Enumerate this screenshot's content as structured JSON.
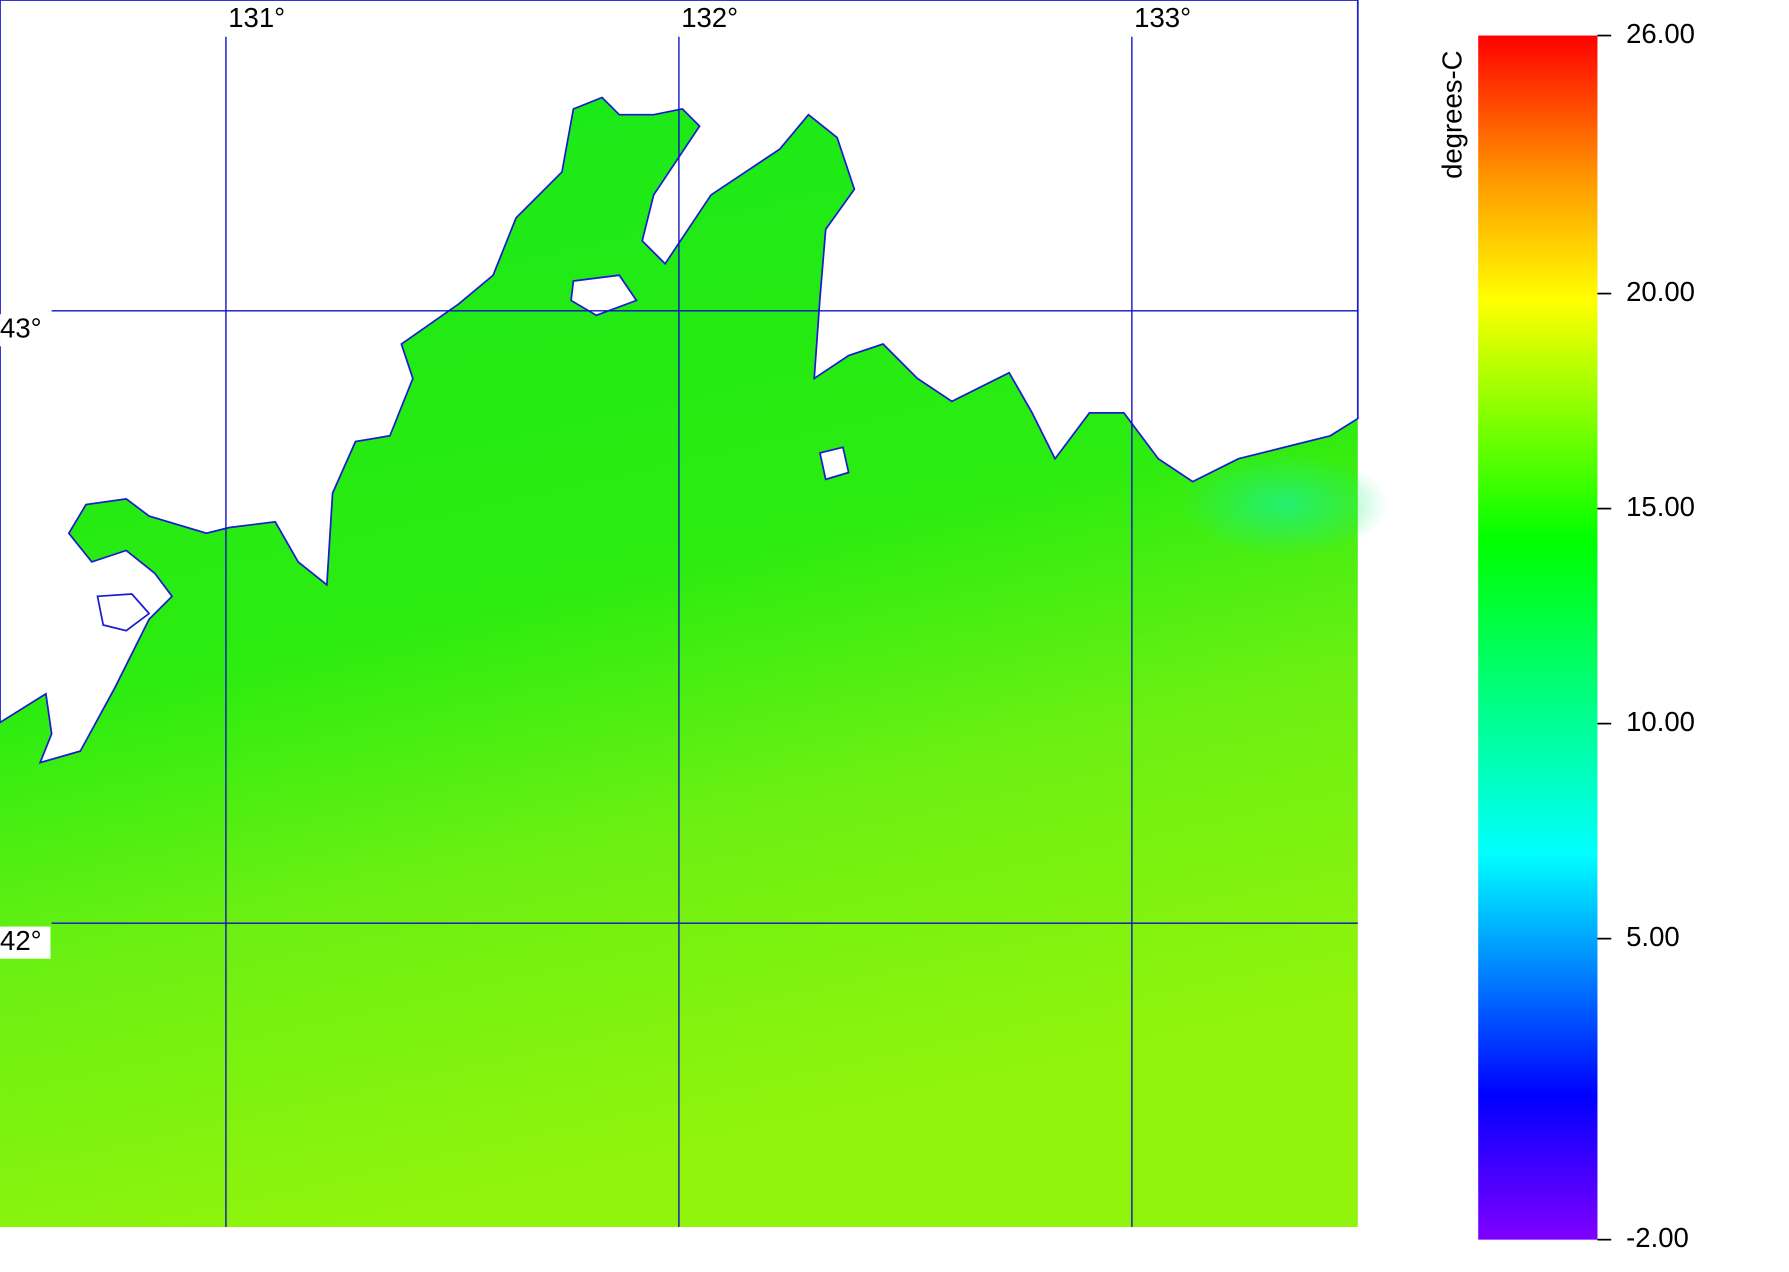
{
  "map": {
    "lon_lines": [
      {
        "value": 131,
        "label": "131°"
      },
      {
        "value": 132,
        "label": "132°"
      },
      {
        "value": 133,
        "label": "133°"
      }
    ],
    "lat_lines": [
      {
        "value": 43,
        "label": "43°"
      },
      {
        "value": 42,
        "label": "42°"
      }
    ]
  },
  "colorbar": {
    "label": "degrees-C",
    "lim": [
      -2,
      26
    ],
    "ticks": [
      {
        "value": 26,
        "label": "26.00"
      },
      {
        "value": 20,
        "label": "20.00"
      },
      {
        "value": 15,
        "label": "15.00"
      },
      {
        "value": 10,
        "label": "10.00"
      },
      {
        "value": 5,
        "label": "5.00"
      },
      {
        "value": -2,
        "label": "-2.00"
      }
    ]
  }
}
